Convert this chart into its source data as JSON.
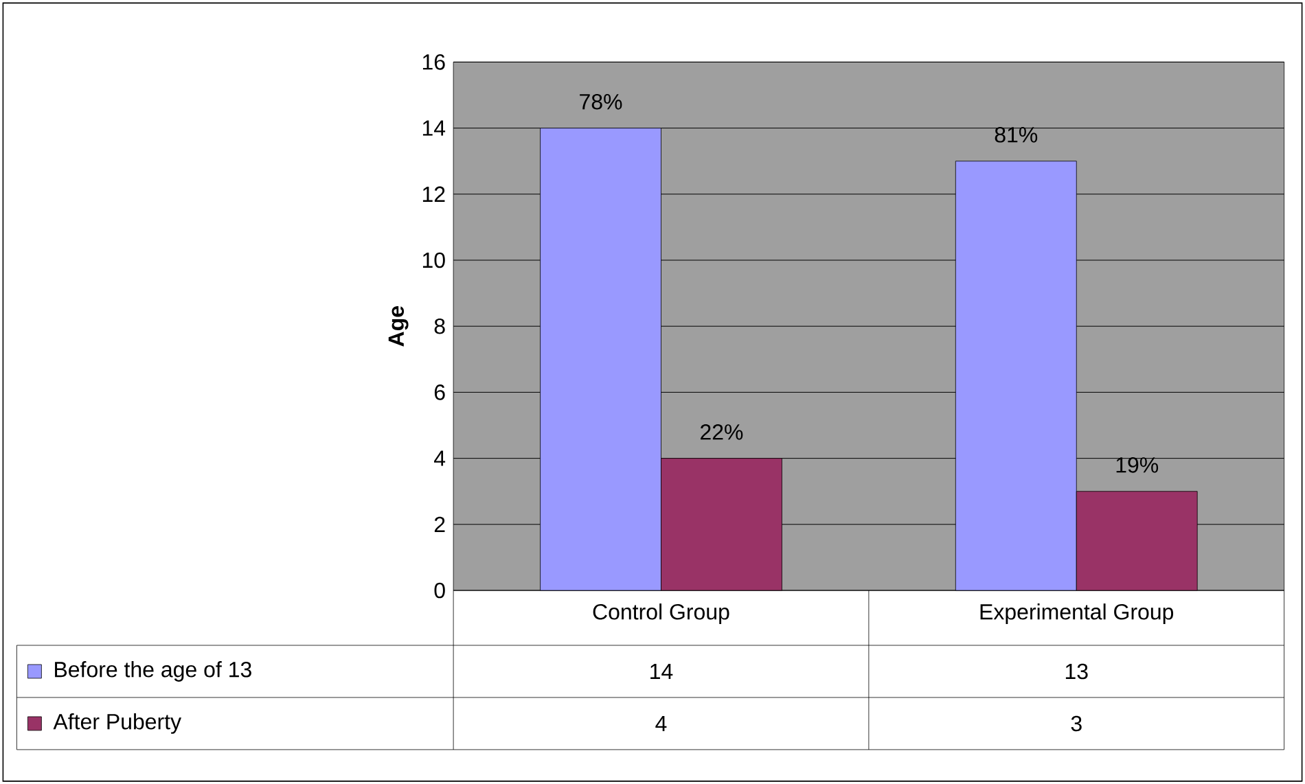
{
  "chart_data": {
    "type": "bar",
    "ylabel": "Age",
    "categories": [
      "Control Group",
      "Experimental Group"
    ],
    "series": [
      {
        "name": "Before the age of 13",
        "color": "#9999ff",
        "values": [
          14,
          13
        ],
        "value_labels": [
          "14",
          "13"
        ]
      },
      {
        "name": "After Puberty",
        "color": "#993366",
        "values": [
          4,
          3
        ],
        "value_labels": [
          "4",
          "3"
        ]
      }
    ],
    "annotations": [
      {
        "text": "78%",
        "x": "Control Group",
        "y": 14
      },
      {
        "text": "22%",
        "x": "Control Group",
        "y": 4
      },
      {
        "text": "81%",
        "x": "Experimental Group",
        "y": 13
      },
      {
        "text": "19%",
        "x": "Experimental Group",
        "y": 3
      }
    ],
    "ylim": [
      0,
      16
    ],
    "yticks": [
      0,
      2,
      4,
      6,
      8,
      10,
      12,
      14,
      16
    ],
    "grid": "y",
    "legend": "bottom left"
  }
}
